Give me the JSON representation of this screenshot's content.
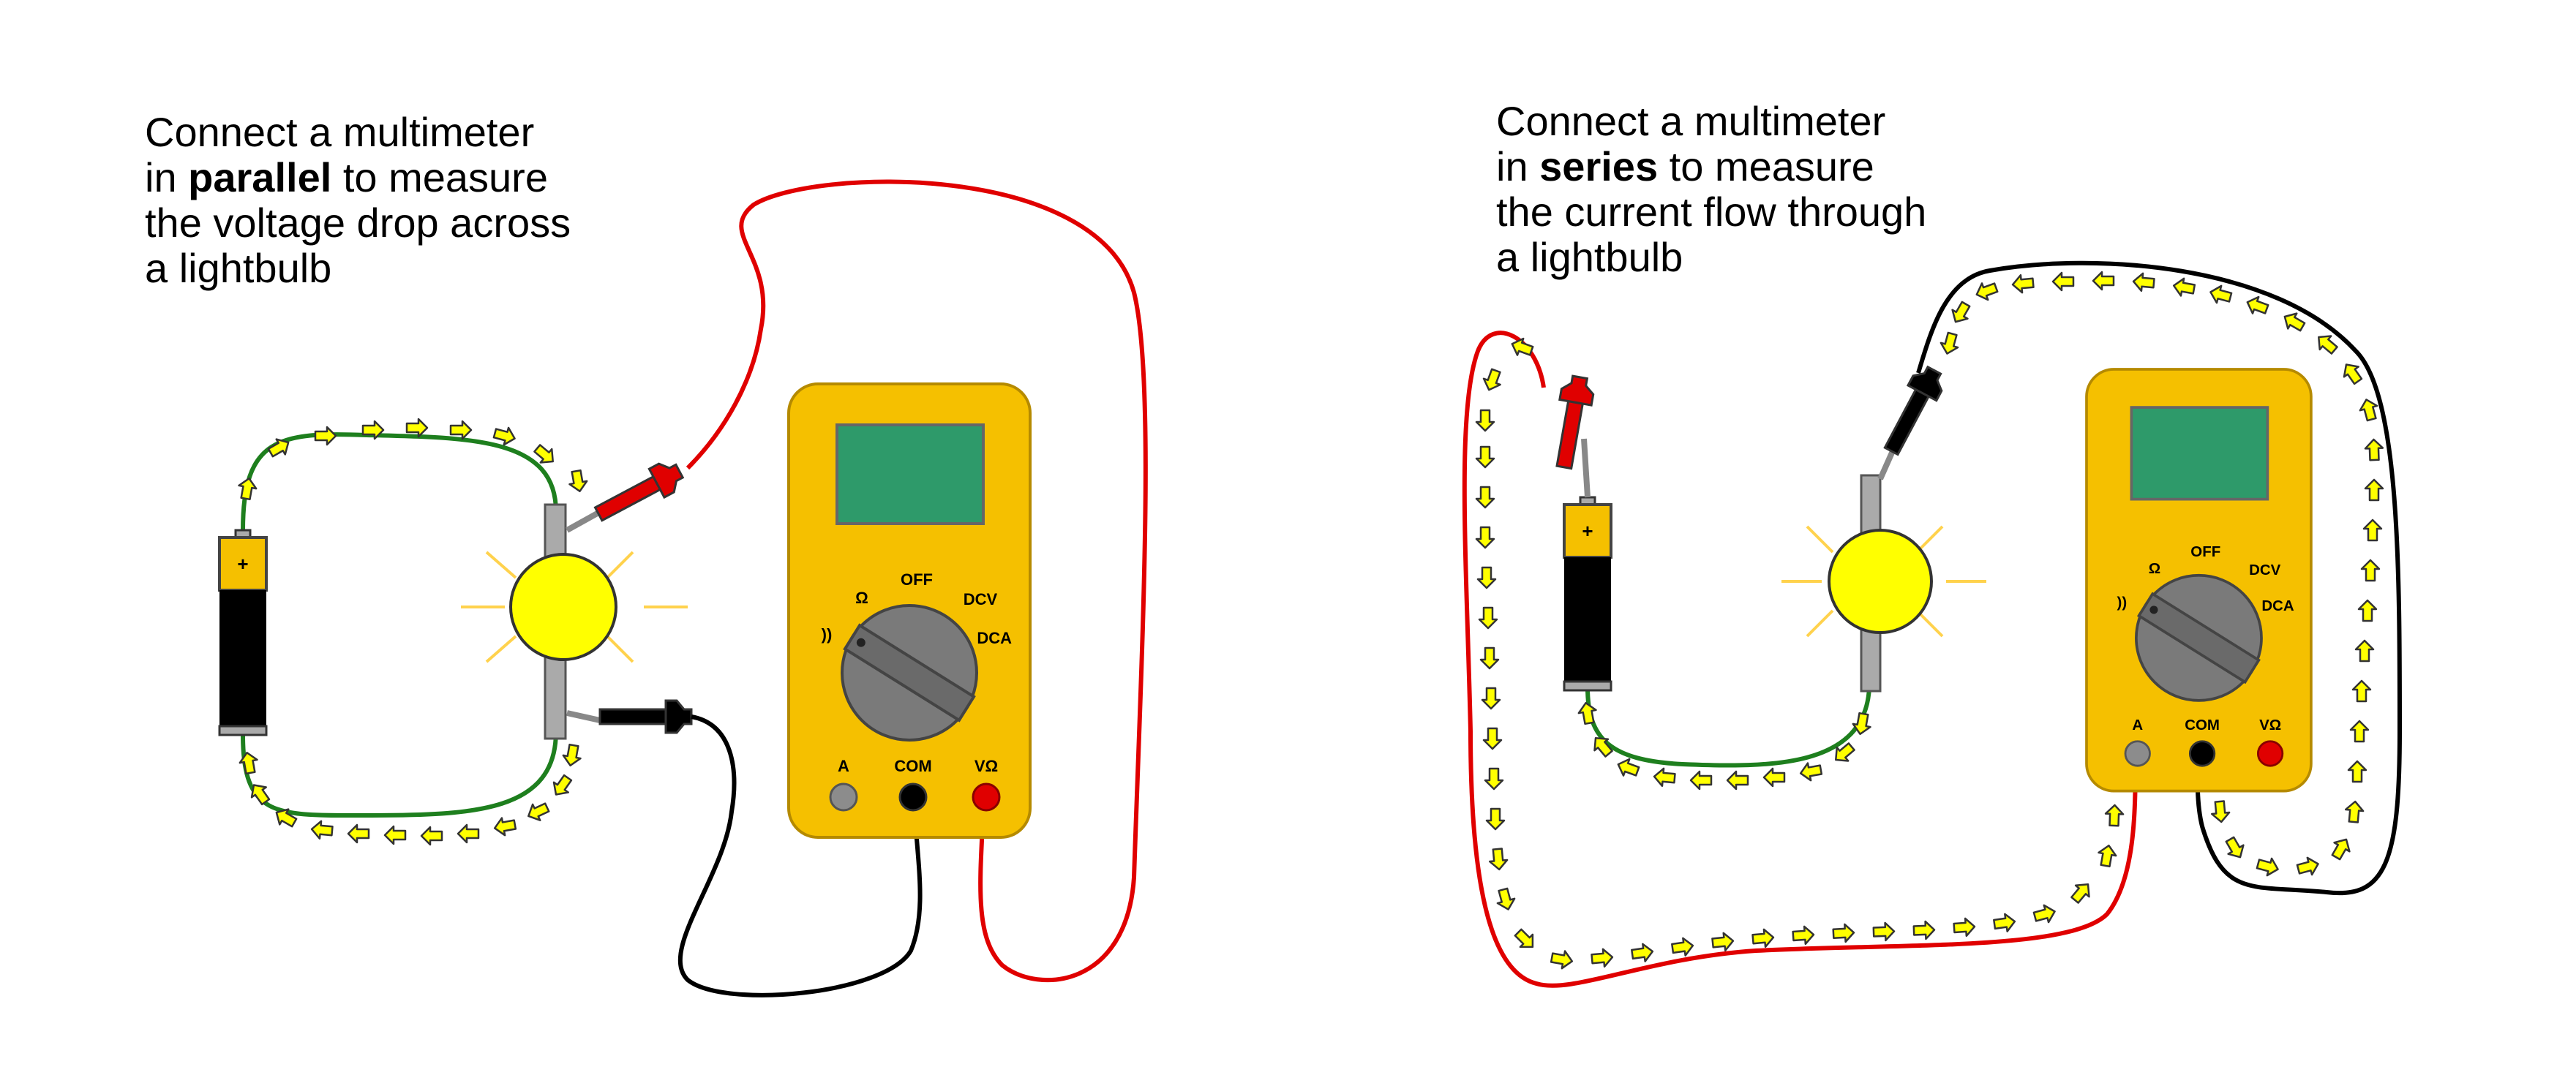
{
  "left_panel": {
    "caption": {
      "line1": "Connect a multimeter",
      "line2_prefix": "in ",
      "line2_bold": "parallel",
      "line2_suffix": " to measure",
      "line3": "the voltage drop across",
      "line4": "a lightbulb"
    },
    "battery_plus": "+",
    "multimeter": {
      "dial_labels": {
        "off": "OFF",
        "ohm": "Ω",
        "dcv": "DCV",
        "dca": "DCA",
        "sound": "))"
      },
      "port_labels": {
        "a": "A",
        "com": "COM",
        "vohm": "VΩ"
      }
    }
  },
  "right_panel": {
    "caption": {
      "line1": "Connect a multimeter",
      "line2_prefix": "in ",
      "line2_bold": "series",
      "line2_suffix": " to measure",
      "line3": "the current flow through",
      "line4": "a lightbulb"
    },
    "battery_plus": "+",
    "multimeter": {
      "dial_labels": {
        "off": "OFF",
        "ohm": "Ω",
        "dcv": "DCV",
        "dca": "DCA",
        "sound": "))"
      },
      "port_labels": {
        "a": "A",
        "com": "COM",
        "vohm": "VΩ"
      }
    }
  },
  "colors": {
    "multimeter_body": "#F5C000",
    "multimeter_outline": "#B58A00",
    "display": "#2E9A6A",
    "dial": "#7A7A7A",
    "wire_red": "#E00000",
    "wire_black": "#000000",
    "wire_green": "#1E7F1E",
    "flow_arrow": "#FFFF00",
    "bulb": "#FFFF00",
    "battery_top": "#F5C000"
  }
}
